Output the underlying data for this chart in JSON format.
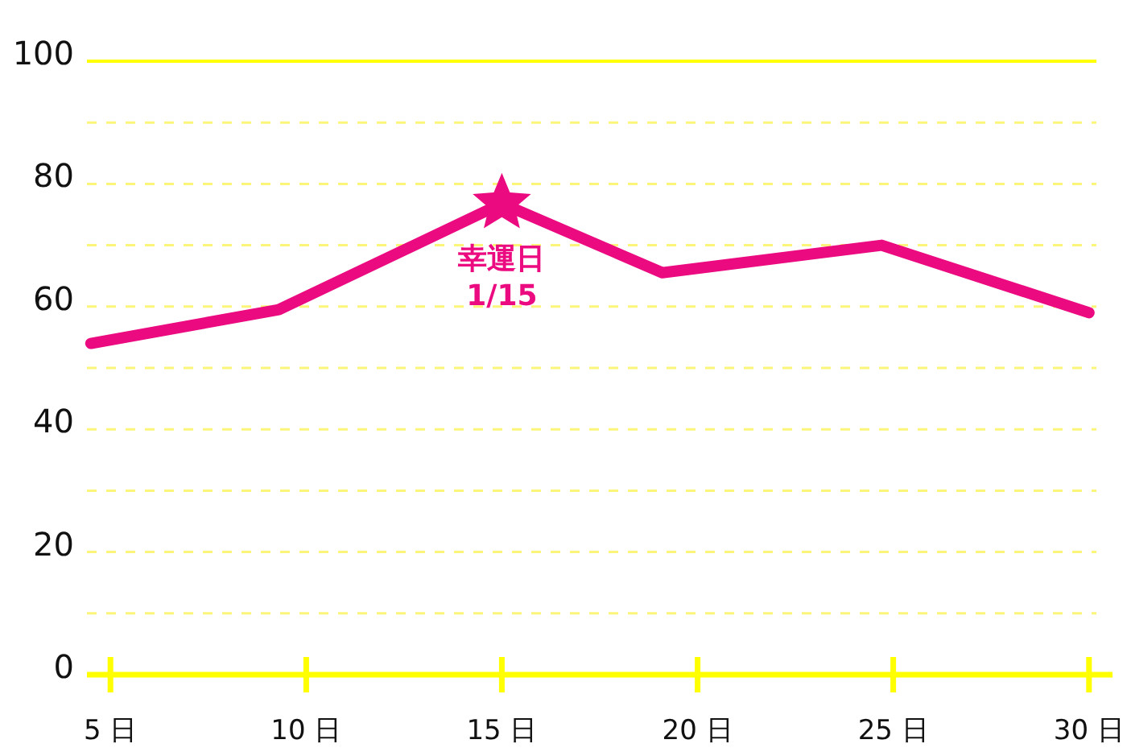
{
  "chart_data": {
    "type": "line",
    "x": [
      4.5,
      9.3,
      15,
      19.1,
      24.7,
      30
    ],
    "series": [
      {
        "color": "#eb0a7f",
        "values": [
          54,
          59.5,
          76.8,
          65.5,
          70,
          59
        ]
      },
      {
        "type": "scatter",
        "x": [
          15
        ],
        "color": "#eb0a7f",
        "marker": "star",
        "values": [
          76.8
        ]
      }
    ],
    "xlim": [
      4.4,
      30.6
    ],
    "xticks": [
      {
        "value": 5,
        "label": "5 日"
      },
      {
        "value": 10,
        "label": "10 日"
      },
      {
        "value": 15,
        "label": "15 日"
      },
      {
        "value": 20,
        "label": "20 日"
      },
      {
        "value": 25,
        "label": "25 日"
      },
      {
        "value": 30,
        "label": "30 日"
      }
    ],
    "ylim": [
      0,
      100
    ],
    "yticks": [
      0,
      {
        "value": 10,
        "label": null
      },
      20,
      {
        "value": 30,
        "label": null
      },
      40,
      {
        "value": 50,
        "label": null
      },
      60,
      {
        "value": 70,
        "label": null
      },
      80,
      {
        "value": 90,
        "label": null
      },
      100
    ],
    "grid": "y",
    "annotations": [
      {
        "text": "幸運日",
        "x": 15,
        "y": 76.8
      },
      {
        "text": "1/15",
        "x": 15,
        "y": 76.8
      }
    ]
  }
}
